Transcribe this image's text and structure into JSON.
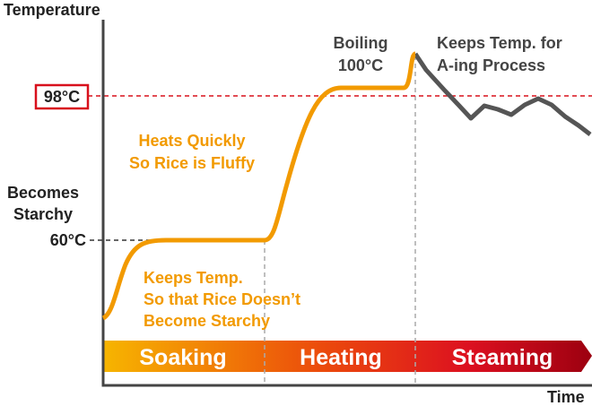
{
  "axes": {
    "y_label": "Temperature",
    "x_label": "Time"
  },
  "levels": {
    "high": "98°C",
    "low": "60°C",
    "low_note": [
      "Becomes",
      "Starchy"
    ]
  },
  "annotations": {
    "heating": [
      "Heats Quickly",
      "So Rice is Fluffy"
    ],
    "soaking": [
      "Keeps Temp.",
      "So that Rice Doesn’t",
      "Become Starchy"
    ],
    "boiling": [
      "Boiling",
      "100°C"
    ],
    "steaming": [
      "Keeps Temp. for",
      "A-ing Process"
    ]
  },
  "phases": [
    "Soaking",
    "Heating",
    "Steaming"
  ]
}
